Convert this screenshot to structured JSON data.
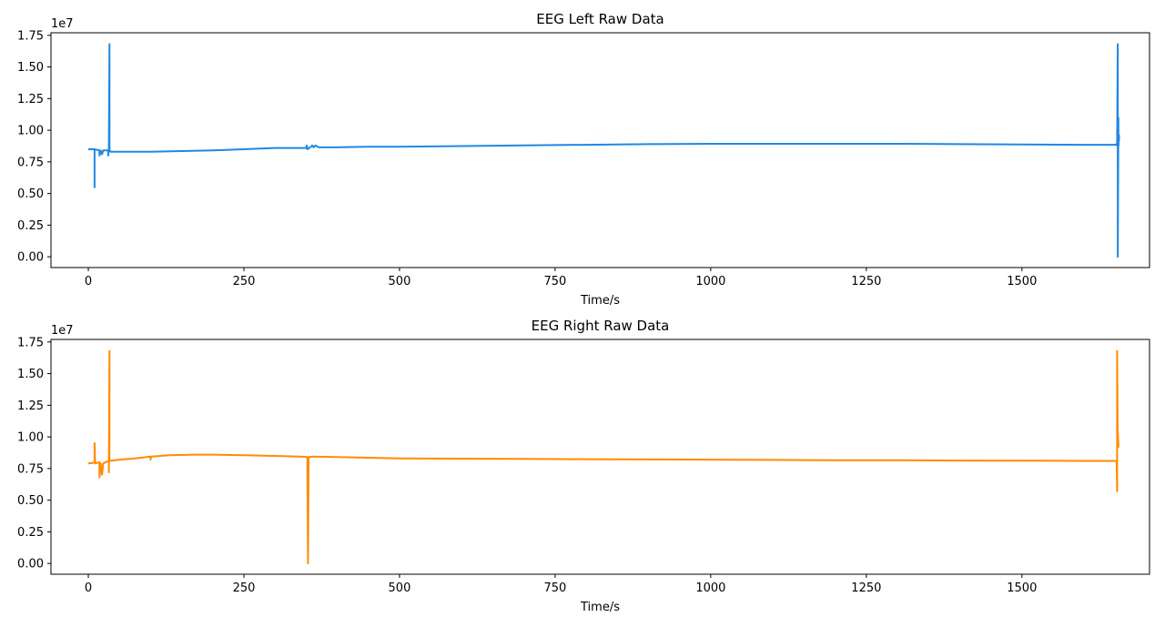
{
  "chart_data": [
    {
      "type": "line",
      "title": "EEG Left Raw Data",
      "xlabel": "Time/s",
      "ylabel": "",
      "y_offset_label": "1e7",
      "xlim": [
        -60,
        1705
      ],
      "ylim": [
        -0.085,
        1.77
      ],
      "xticks": [
        0,
        250,
        500,
        750,
        1000,
        1250,
        1500
      ],
      "yticks": [
        0.0,
        0.25,
        0.5,
        0.75,
        1.0,
        1.25,
        1.5,
        1.75
      ],
      "grid": false,
      "color": "#1e88e5",
      "series": [
        {
          "points": [
            [
              0,
              0.85
            ],
            [
              10,
              0.85
            ],
            [
              10,
              0.55
            ],
            [
              10,
              0.85
            ],
            [
              18,
              0.84
            ],
            [
              18,
              0.8
            ],
            [
              20,
              0.84
            ],
            [
              22,
              0.81
            ],
            [
              24,
              0.84
            ],
            [
              32,
              0.84
            ],
            [
              32,
              0.8
            ],
            [
              33,
              0.84
            ],
            [
              34,
              1.68
            ],
            [
              34,
              0.84
            ],
            [
              36,
              0.83
            ],
            [
              60,
              0.83
            ],
            [
              100,
              0.83
            ],
            [
              150,
              0.835
            ],
            [
              200,
              0.84
            ],
            [
              250,
              0.85
            ],
            [
              300,
              0.86
            ],
            [
              350,
              0.86
            ],
            [
              351,
              0.88
            ],
            [
              352,
              0.85
            ],
            [
              355,
              0.86
            ],
            [
              360,
              0.88
            ],
            [
              362,
              0.865
            ],
            [
              365,
              0.88
            ],
            [
              370,
              0.865
            ],
            [
              400,
              0.865
            ],
            [
              450,
              0.87
            ],
            [
              500,
              0.87
            ],
            [
              600,
              0.875
            ],
            [
              700,
              0.88
            ],
            [
              800,
              0.885
            ],
            [
              900,
              0.89
            ],
            [
              1000,
              0.893
            ],
            [
              1100,
              0.893
            ],
            [
              1200,
              0.893
            ],
            [
              1300,
              0.893
            ],
            [
              1400,
              0.89
            ],
            [
              1500,
              0.888
            ],
            [
              1600,
              0.885
            ],
            [
              1650,
              0.885
            ],
            [
              1652,
              0.89
            ],
            [
              1653,
              0.88
            ],
            [
              1654,
              1.68
            ],
            [
              1654,
              0.0
            ],
            [
              1655,
              1.1
            ],
            [
              1655,
              0.87
            ],
            [
              1656,
              0.96
            ],
            [
              1656,
              0.92
            ]
          ]
        }
      ]
    },
    {
      "type": "line",
      "title": "EEG Right Raw Data",
      "xlabel": "Time/s",
      "ylabel": "",
      "y_offset_label": "1e7",
      "xlim": [
        -60,
        1705
      ],
      "ylim": [
        -0.085,
        1.77
      ],
      "xticks": [
        0,
        250,
        500,
        750,
        1000,
        1250,
        1500
      ],
      "yticks": [
        0.0,
        0.25,
        0.5,
        0.75,
        1.0,
        1.25,
        1.5,
        1.75
      ],
      "grid": false,
      "color": "#ff8c00",
      "series": [
        {
          "points": [
            [
              0,
              0.79
            ],
            [
              8,
              0.795
            ],
            [
              10,
              0.8
            ],
            [
              10,
              0.95
            ],
            [
              11,
              0.79
            ],
            [
              18,
              0.8
            ],
            [
              18,
              0.68
            ],
            [
              20,
              0.79
            ],
            [
              22,
              0.7
            ],
            [
              24,
              0.79
            ],
            [
              30,
              0.805
            ],
            [
              33,
              0.81
            ],
            [
              33,
              0.72
            ],
            [
              34,
              1.68
            ],
            [
              34,
              0.81
            ],
            [
              50,
              0.82
            ],
            [
              75,
              0.83
            ],
            [
              100,
              0.845
            ],
            [
              100,
              0.82
            ],
            [
              101,
              0.845
            ],
            [
              130,
              0.855
            ],
            [
              170,
              0.86
            ],
            [
              200,
              0.86
            ],
            [
              250,
              0.855
            ],
            [
              300,
              0.85
            ],
            [
              340,
              0.845
            ],
            [
              352,
              0.84
            ],
            [
              353,
              0.0
            ],
            [
              354,
              0.84
            ],
            [
              360,
              0.845
            ],
            [
              400,
              0.84
            ],
            [
              450,
              0.835
            ],
            [
              500,
              0.83
            ],
            [
              600,
              0.828
            ],
            [
              700,
              0.826
            ],
            [
              800,
              0.824
            ],
            [
              900,
              0.822
            ],
            [
              1000,
              0.82
            ],
            [
              1100,
              0.818
            ],
            [
              1200,
              0.816
            ],
            [
              1300,
              0.815
            ],
            [
              1400,
              0.813
            ],
            [
              1500,
              0.812
            ],
            [
              1600,
              0.81
            ],
            [
              1650,
              0.81
            ],
            [
              1652,
              0.81
            ],
            [
              1653,
              0.57
            ],
            [
              1653,
              1.68
            ],
            [
              1654,
              0.95
            ],
            [
              1654,
              1.05
            ],
            [
              1655,
              0.92
            ],
            [
              1655,
              0.95
            ]
          ]
        }
      ]
    }
  ]
}
